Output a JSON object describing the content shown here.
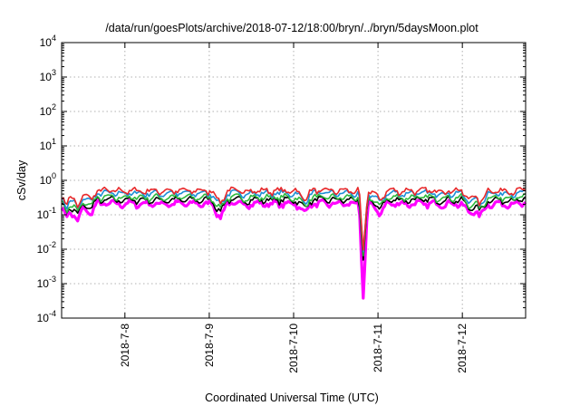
{
  "chart_data": {
    "type": "line",
    "title": "/data/run/goesPlots/archive/2018-07-12/18:00/bryn/../bryn/5daysMoon.plot",
    "xlabel": "Coordinated Universal Time (UTC)",
    "ylabel": "cSv/day",
    "yscale": "log",
    "ylim": [
      0.0001,
      10000
    ],
    "xlim": [
      "2018-07-07 06:00",
      "2018-07-12 18:00"
    ],
    "grid": true,
    "legend": "none",
    "x_ticks": [
      {
        "label": "2018-7-8",
        "date": "2018-07-08 00:00"
      },
      {
        "label": "2018-7-9",
        "date": "2018-07-09 00:00"
      },
      {
        "label": "2018-7-10",
        "date": "2018-07-10 00:00"
      },
      {
        "label": "2018-7-11",
        "date": "2018-07-11 00:00"
      },
      {
        "label": "2018-7-12",
        "date": "2018-07-12 00:00"
      }
    ],
    "y_ticks": [
      {
        "base": "10",
        "exp": "-4",
        "value": 0.0001
      },
      {
        "base": "10",
        "exp": "-3",
        "value": 0.001
      },
      {
        "base": "10",
        "exp": "-2",
        "value": 0.01
      },
      {
        "base": "10",
        "exp": "-1",
        "value": 0.1
      },
      {
        "base": "10",
        "exp": "0",
        "value": 1
      },
      {
        "base": "10",
        "exp": "1",
        "value": 10
      },
      {
        "base": "10",
        "exp": "2",
        "value": 100
      },
      {
        "base": "10",
        "exp": "3",
        "value": 1000
      },
      {
        "base": "10",
        "exp": "4",
        "value": 10000
      }
    ],
    "series": [
      {
        "color": "#e8282a",
        "level": 0.5
      },
      {
        "color": "#1e8fd6",
        "level": 0.42
      },
      {
        "color": "#2db83d",
        "level": 0.32
      },
      {
        "color": "#000000",
        "level": 0.27
      },
      {
        "color": "#ff00ff",
        "level": 0.21
      }
    ],
    "dips": [
      {
        "date": "2018-07-07 07:30",
        "factor": 0.45
      },
      {
        "date": "2018-07-07 10:30",
        "factor": 0.35
      },
      {
        "date": "2018-07-07 14:00",
        "factor": 0.55
      },
      {
        "date": "2018-07-09 03:00",
        "factor": 0.45
      },
      {
        "date": "2018-07-10 03:00",
        "factor": 0.6
      },
      {
        "date": "2018-07-10 19:50",
        "factor": 0.0036
      },
      {
        "date": "2018-07-11 00:20",
        "factor": 0.55
      },
      {
        "date": "2018-07-12 02:00",
        "factor": 0.55
      },
      {
        "date": "2018-07-12 05:00",
        "factor": 0.45
      }
    ]
  }
}
